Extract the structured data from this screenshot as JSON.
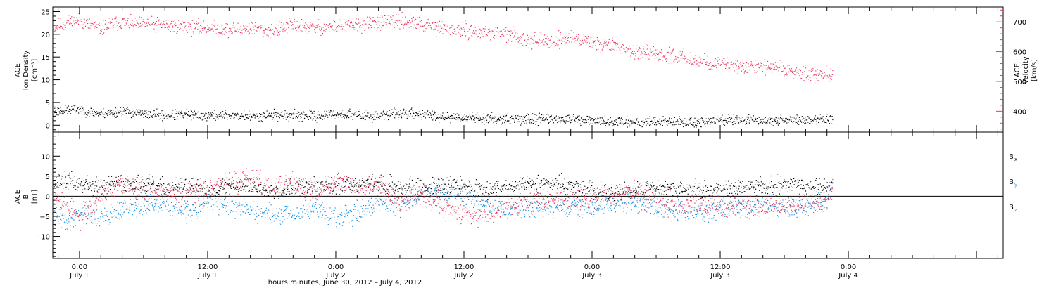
{
  "colors": {
    "black": "#000000",
    "red": "#e8385e",
    "blue": "#1a8de0"
  },
  "x_axis": {
    "title": "hours:minutes, June 30, 2012 – July  4, 2012",
    "range_hours": [
      -2.5,
      86.5
    ],
    "ticks": [
      {
        "hour": 0,
        "time": "0:00",
        "day": "July 1"
      },
      {
        "hour": 12,
        "time": "12:00",
        "day": "July 1"
      },
      {
        "hour": 24,
        "time": "0:00",
        "day": "July 2"
      },
      {
        "hour": 36,
        "time": "12:00",
        "day": "July 2"
      },
      {
        "hour": 48,
        "time": "0:00",
        "day": "July 3"
      },
      {
        "hour": 60,
        "time": "12:00",
        "day": "July 3"
      },
      {
        "hour": 72,
        "time": "0:00",
        "day": "July 4"
      }
    ]
  },
  "chart_data": [
    {
      "type": "scatter",
      "panel": "top",
      "left_axis": {
        "label_lines": [
          "ACE",
          "Ion Density",
          "[cm⁻³]"
        ],
        "range": [
          -1.5,
          26
        ],
        "tick_values": [
          0,
          5,
          10,
          15,
          20,
          25
        ],
        "tick_labels": [
          "0",
          "5",
          "10",
          "15",
          "20",
          "25"
        ]
      },
      "right_axis": {
        "label_lines": [
          "ACE",
          "Velocity",
          "[km/s]"
        ],
        "range": [
          330,
          750
        ],
        "tick_values": [
          400,
          500,
          600,
          700
        ],
        "tick_labels": [
          "400",
          "500",
          "600",
          "700"
        ],
        "color": "#e8385e"
      },
      "series": [
        {
          "axis": "left",
          "color": "#000000",
          "x": [
            -2.4,
            -1,
            0,
            1,
            2,
            3,
            4,
            5,
            6,
            8,
            10,
            12,
            14,
            16,
            18,
            20,
            22,
            24,
            26,
            28,
            30,
            32,
            34,
            36,
            38,
            40,
            42,
            44,
            46,
            48,
            50,
            52,
            54,
            56,
            58,
            60,
            62,
            64,
            66,
            68,
            70,
            70.5
          ],
          "y": [
            3.2,
            3.4,
            3.6,
            3.0,
            2.6,
            2.8,
            3.3,
            2.9,
            2.5,
            2.2,
            2.4,
            2.1,
            2.3,
            2.0,
            2.4,
            2.2,
            2.0,
            2.6,
            2.3,
            2.1,
            2.8,
            2.5,
            2.0,
            1.8,
            1.6,
            1.5,
            1.4,
            1.6,
            1.2,
            1.0,
            0.9,
            0.8,
            1.0,
            0.8,
            0.6,
            1.2,
            1.3,
            1.1,
            1.4,
            1.2,
            1.3,
            1.5
          ]
        },
        {
          "axis": "right",
          "color": "#e8385e",
          "x": [
            -2.4,
            -1,
            0,
            1,
            2,
            3,
            4,
            5,
            6,
            8,
            10,
            12,
            14,
            16,
            18,
            20,
            22,
            24,
            26,
            28,
            30,
            32,
            34,
            36,
            38,
            40,
            42,
            44,
            46,
            48,
            50,
            52,
            54,
            56,
            58,
            60,
            62,
            64,
            66,
            68,
            70,
            70.5
          ],
          "y": [
            685,
            700,
            705,
            690,
            680,
            695,
            700,
            690,
            695,
            690,
            685,
            680,
            675,
            680,
            670,
            690,
            680,
            685,
            690,
            700,
            705,
            690,
            680,
            670,
            665,
            660,
            640,
            635,
            650,
            630,
            620,
            600,
            590,
            585,
            570,
            560,
            555,
            550,
            540,
            530,
            525,
            520
          ]
        }
      ]
    },
    {
      "type": "scatter",
      "panel": "bottom",
      "left_axis": {
        "label_lines": [
          "ACE",
          "B",
          "[nT]"
        ],
        "range": [
          -15.5,
          16
        ],
        "tick_values": [
          -10,
          -5,
          0,
          5,
          10
        ],
        "tick_labels": [
          "−10",
          "−5",
          "0",
          "5",
          "10"
        ]
      },
      "legend": {
        "position": "right",
        "entries": [
          "B",
          "B",
          "B"
        ],
        "subscripts": [
          "x",
          "y",
          "z"
        ]
      },
      "series": [
        {
          "legend_index": 0,
          "color": "#000000",
          "x": [
            -2.4,
            -1,
            0,
            2,
            4,
            6,
            8,
            10,
            12,
            14,
            16,
            18,
            20,
            22,
            24,
            26,
            28,
            30,
            32,
            34,
            36,
            38,
            40,
            42,
            44,
            46,
            48,
            50,
            52,
            54,
            56,
            58,
            60,
            62,
            64,
            66,
            68,
            70,
            70.5
          ],
          "y": [
            3.5,
            4.0,
            3.0,
            2.5,
            3.5,
            3.0,
            2.0,
            2.5,
            1.5,
            3.0,
            2.5,
            1.5,
            2.0,
            3.0,
            2.5,
            3.5,
            3.0,
            2.5,
            2.0,
            3.0,
            2.5,
            2.0,
            2.5,
            3.0,
            3.5,
            2.5,
            1.5,
            1.0,
            1.5,
            2.5,
            2.0,
            1.5,
            1.5,
            2.5,
            2.5,
            3.0,
            2.5,
            2.0,
            3.0
          ]
        },
        {
          "legend_index": 1,
          "color": "#1a8de0",
          "x": [
            -2.4,
            -1,
            0,
            2,
            4,
            6,
            8,
            10,
            12,
            14,
            16,
            18,
            20,
            22,
            24,
            26,
            28,
            30,
            32,
            34,
            36,
            38,
            40,
            42,
            44,
            46,
            48,
            50,
            52,
            54,
            56,
            58,
            60,
            62,
            64,
            66,
            68,
            70,
            70.5
          ],
          "y": [
            -5.0,
            -6.0,
            -4.0,
            -5.5,
            -3.0,
            -2.5,
            -2.0,
            -4.0,
            -1.0,
            -2.5,
            -3.0,
            -5.0,
            -4.5,
            -3.0,
            -5.5,
            -4.0,
            -1.5,
            -2.0,
            0.5,
            1.0,
            0.0,
            -2.0,
            -3.5,
            -2.5,
            -3.0,
            -2.0,
            -3.0,
            -2.0,
            -1.5,
            -3.0,
            -3.5,
            -4.0,
            -3.0,
            -2.5,
            -2.0,
            -3.0,
            -2.5,
            -1.0,
            2.5
          ]
        },
        {
          "legend_index": 2,
          "color": "#e8385e",
          "x": [
            -2.4,
            -1,
            0,
            2,
            4,
            6,
            8,
            10,
            12,
            14,
            16,
            18,
            20,
            22,
            24,
            26,
            28,
            30,
            32,
            34,
            36,
            38,
            40,
            42,
            44,
            46,
            48,
            50,
            52,
            54,
            56,
            58,
            60,
            62,
            64,
            66,
            68,
            70,
            70.5
          ],
          "y": [
            1.0,
            -2.5,
            -5.5,
            0.5,
            3.0,
            2.0,
            1.0,
            0.5,
            2.5,
            3.5,
            4.5,
            2.0,
            3.5,
            0.5,
            4.0,
            2.0,
            3.0,
            -1.0,
            1.0,
            -3.0,
            -4.0,
            -4.5,
            -2.0,
            -1.5,
            -0.5,
            -1.0,
            -0.5,
            0.0,
            1.0,
            -1.0,
            -2.0,
            -1.5,
            -2.5,
            -2.0,
            -3.0,
            -2.0,
            -1.5,
            -2.0,
            3.0
          ]
        }
      ]
    }
  ]
}
